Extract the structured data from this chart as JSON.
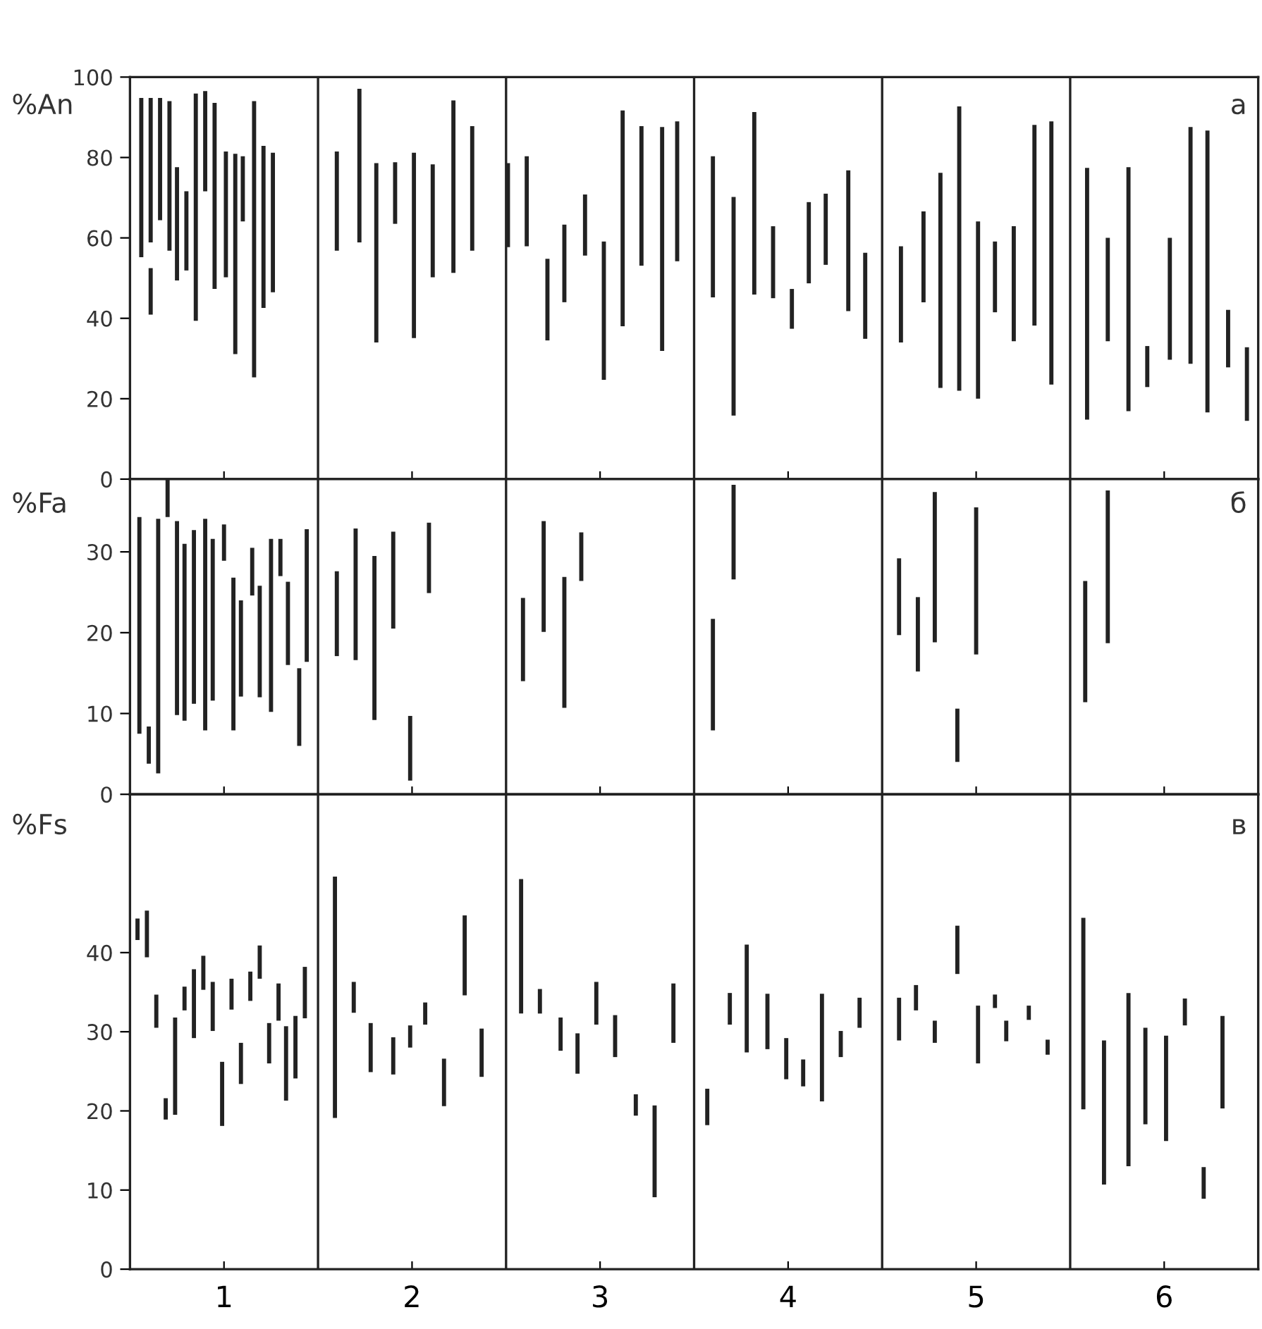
{
  "chart_data": [
    {
      "type": "bar",
      "ylabel": "%An",
      "annotations": [
        "a"
      ],
      "tick_labels": "y",
      "series": [
        {
          "color": "#222222",
          "x": [
            0.56,
            0.61,
            0.66,
            0.71,
            0.75,
            0.8,
            0.85,
            0.9,
            0.95,
            1.01,
            1.06,
            1.1,
            1.16,
            1.21,
            1.26,
            1.6,
            1.72,
            1.81,
            1.91,
            2.01,
            2.11,
            2.22,
            2.32,
            2.51,
            2.61,
            2.72,
            2.81,
            2.92,
            3.02,
            3.12,
            3.22,
            3.33,
            3.41,
            3.6,
            3.71,
            3.82,
            3.92,
            4.02,
            4.11,
            4.2,
            4.32,
            4.41,
            4.6,
            4.72,
            4.81,
            4.91,
            5.01,
            5.1,
            5.2,
            5.31,
            5.4,
            5.59,
            5.7,
            5.81,
            5.91,
            6.03,
            6.14,
            6.23,
            6.34,
            6.44
          ],
          "base": [
            55.2,
            58.9,
            64.4,
            56.8,
            49.4,
            51.9,
            39.4,
            71.6,
            47.3,
            50.2,
            31.1,
            64.1,
            25.3,
            42.6,
            46.5,
            56.8,
            58.9,
            34,
            63.5,
            35.1,
            50.2,
            51.3,
            56.8,
            57.7,
            57.9,
            34.5,
            44,
            55.6,
            24.7,
            38,
            53.1,
            31.9,
            54.2,
            45.2,
            15.8,
            45.9,
            45,
            37.4,
            48.7,
            53.3,
            41.8,
            34.9,
            34,
            44,
            22.7,
            22,
            20,
            41.5,
            34.3,
            38.2,
            23.5,
            14.8,
            34.3,
            16.9,
            22.9,
            29.7,
            28.7,
            16.6,
            27.8,
            14.5
          ],
          "values": [
            39.6,
            35.9,
            30.4,
            37.2,
            28.2,
            19.7,
            56.5,
            24.9,
            46.3,
            31.3,
            49.8,
            16.2,
            68.7,
            40.3,
            34.7,
            24.7,
            38.2,
            44.6,
            15.3,
            46.1,
            28.1,
            42.9,
            31,
            20.9,
            22.4,
            20.3,
            19.3,
            15.2,
            34.4,
            53.7,
            34.7,
            55.7,
            34.8,
            35.1,
            54.4,
            45.4,
            17.9,
            9.9,
            20.2,
            17.7,
            35,
            21.4,
            23.9,
            22.6,
            53.5,
            70.7,
            44.1,
            17.6,
            28.6,
            49.9,
            65.5,
            62.6,
            25.7,
            60.7,
            10.2,
            30.3,
            58.9,
            70.1,
            14.3,
            18.3
          ]
        },
        {
          "color": "#222222",
          "x": [
            0.61
          ],
          "base": [
            40.9
          ],
          "values": [
            11.6
          ]
        }
      ],
      "xlim": [
        0.5,
        6.5
      ],
      "xticks": [
        1,
        2,
        3,
        4,
        5,
        6
      ],
      "ylim": [
        0,
        100
      ],
      "yticks": [
        0,
        20,
        40,
        60,
        80,
        100
      ],
      "ref_lines": [
        {
          "axis": "x",
          "value": 1.5,
          "color": "#222222"
        },
        {
          "axis": "x",
          "value": 2.5,
          "color": "#222222"
        },
        {
          "axis": "x",
          "value": 3.5,
          "color": "#222222"
        },
        {
          "axis": "x",
          "value": 4.5,
          "color": "#222222"
        },
        {
          "axis": "x",
          "value": 5.5,
          "color": "#222222"
        }
      ]
    },
    {
      "type": "bar",
      "ylabel": "%Fa",
      "annotations": [
        "б"
      ],
      "tick_labels": "y",
      "series": [
        {
          "color": "#222222",
          "x": [
            0.55,
            0.6,
            0.65,
            0.7,
            0.75,
            0.79,
            0.84,
            0.9,
            0.94,
            1.0,
            1.05,
            1.09,
            1.15,
            1.19,
            1.25,
            1.3,
            1.34,
            1.4,
            1.44,
            1.6,
            1.7,
            1.8,
            1.9,
            1.99,
            2.09,
            2.59,
            2.7,
            2.81,
            2.9,
            3.6,
            3.71,
            4.59,
            4.69,
            4.78,
            4.9,
            5.0,
            5.58,
            5.7
          ],
          "base": [
            7.5,
            3.8,
            2.6,
            34.3,
            9.8,
            9.1,
            11.2,
            7.9,
            11.6,
            28.9,
            7.9,
            12.1,
            24.6,
            12,
            10.2,
            27,
            16,
            6,
            16.4,
            17.1,
            16.6,
            9.2,
            20.5,
            1.7,
            24.9,
            14,
            20.1,
            10.7,
            26.4,
            7.9,
            26.6,
            19.7,
            15.2,
            18.8,
            4,
            17.3,
            11.4,
            18.7
          ],
          "values": [
            26.8,
            4.6,
            31.5,
            4.7,
            24,
            21.9,
            21.5,
            26.2,
            20,
            4.5,
            18.9,
            11.9,
            5.9,
            13.8,
            21.4,
            4.6,
            10.3,
            9.6,
            16.4,
            10.5,
            16.3,
            20.3,
            12,
            8,
            8.7,
            10.3,
            13.7,
            16.2,
            6,
            13.8,
            11.7,
            9.5,
            9.2,
            18.6,
            6.6,
            18.2,
            15,
            18.9
          ]
        }
      ],
      "xlim": [
        0.5,
        6.5
      ],
      "xticks": [
        1,
        2,
        3,
        4,
        5,
        6
      ],
      "ylim": [
        0,
        39
      ],
      "yticks": [
        0,
        10,
        20,
        30
      ],
      "ref_lines": [
        {
          "axis": "x",
          "value": 1.5,
          "color": "#222222"
        },
        {
          "axis": "x",
          "value": 2.5,
          "color": "#222222"
        },
        {
          "axis": "x",
          "value": 3.5,
          "color": "#222222"
        },
        {
          "axis": "x",
          "value": 4.5,
          "color": "#222222"
        },
        {
          "axis": "x",
          "value": 5.5,
          "color": "#222222"
        }
      ]
    },
    {
      "type": "bar",
      "ylabel": "%Fs",
      "annotations": [
        "в"
      ],
      "series": [
        {
          "color": "#222222",
          "x": [
            0.54,
            0.59,
            0.64,
            0.69,
            0.74,
            0.79,
            0.84,
            0.89,
            0.94,
            0.99,
            1.04,
            1.09,
            1.14,
            1.19,
            1.24,
            1.29,
            1.33,
            1.38,
            1.43,
            1.59,
            1.69,
            1.78,
            1.9,
            1.99,
            2.07,
            2.17,
            2.28,
            2.37,
            2.58,
            2.68,
            2.79,
            2.88,
            2.98,
            3.08,
            3.19,
            3.29,
            3.39,
            3.57,
            3.69,
            3.78,
            3.89,
            3.99,
            4.08,
            4.18,
            4.28,
            4.38,
            4.59,
            4.68,
            4.78,
            4.9,
            5.01,
            5.1,
            5.16,
            5.28,
            5.38,
            5.57,
            5.68,
            5.81,
            5.9,
            6.01,
            6.11,
            6.21,
            6.31
          ],
          "base": [
            41.6,
            39.4,
            30.5,
            18.9,
            19.5,
            32.7,
            29.2,
            35.3,
            30.1,
            18.1,
            32.8,
            23.4,
            33.9,
            36.7,
            26,
            31.4,
            21.3,
            24.1,
            31.7,
            19.1,
            32.4,
            24.9,
            24.6,
            28,
            30.9,
            20.6,
            34.6,
            24.3,
            32.3,
            32.3,
            27.6,
            24.7,
            30.9,
            26.8,
            19.4,
            9.1,
            28.6,
            18.2,
            30.9,
            27.4,
            27.8,
            24,
            23.1,
            21.2,
            26.8,
            30.5,
            28.9,
            32.7,
            28.6,
            37.3,
            26,
            33,
            28.8,
            31.5,
            27.1,
            20.2,
            10.7,
            13,
            18.3,
            16.2,
            30.8,
            8.9,
            20.3
          ],
          "values": [
            2.7,
            5.9,
            4.2,
            2.7,
            12.3,
            3,
            8.7,
            4.3,
            6.2,
            8.1,
            3.9,
            5.2,
            3.7,
            4.2,
            5.1,
            4.7,
            9.4,
            7.9,
            6.5,
            30.5,
            3.9,
            6.2,
            4.7,
            2.8,
            2.8,
            6,
            10.1,
            6.1,
            17,
            3.1,
            4.2,
            5.1,
            5.4,
            5.3,
            2.7,
            11.6,
            7.5,
            4.6,
            4,
            13.6,
            7,
            5.2,
            3.4,
            13.6,
            3.3,
            3.8,
            5.4,
            3.2,
            2.8,
            6.1,
            7.3,
            1.7,
            2.6,
            1.8,
            1.9,
            24.2,
            18.2,
            21.9,
            12.2,
            13.3,
            3.4,
            4,
            11.7
          ]
        }
      ],
      "xlim": [
        0.5,
        6.5
      ],
      "xticks": [
        1,
        2,
        3,
        4,
        5,
        6
      ],
      "ylim": [
        0,
        60
      ],
      "yticks": [
        0,
        10,
        20,
        30,
        40
      ],
      "ref_lines": [
        {
          "axis": "x",
          "value": 1.5,
          "color": "#222222"
        },
        {
          "axis": "x",
          "value": 2.5,
          "color": "#222222"
        },
        {
          "axis": "x",
          "value": 3.5,
          "color": "#222222"
        },
        {
          "axis": "x",
          "value": 4.5,
          "color": "#222222"
        },
        {
          "axis": "x",
          "value": 5.5,
          "color": "#222222"
        }
      ]
    }
  ]
}
